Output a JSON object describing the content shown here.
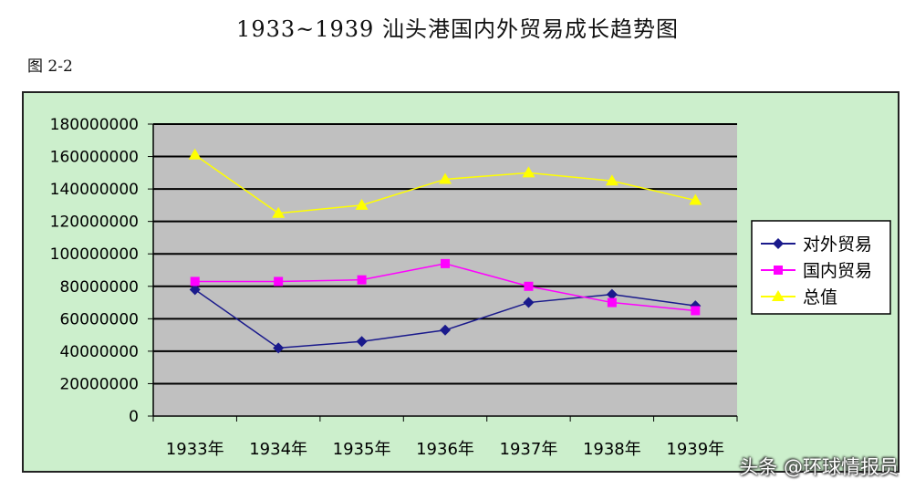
{
  "title": "1933~1939 汕头港国内外贸易成长趋势图",
  "figure_label": "图 2-2",
  "watermark": "头条 @环球情报员",
  "chart_data": {
    "type": "line",
    "title": "1933~1939 汕头港国内外贸易成长趋势图",
    "categories": [
      "1933年",
      "1934年",
      "1935年",
      "1936年",
      "1937年",
      "1938年",
      "1939年"
    ],
    "ylim": [
      0,
      180000000
    ],
    "yticks": [
      0,
      20000000,
      40000000,
      60000000,
      80000000,
      100000000,
      120000000,
      140000000,
      160000000,
      180000000
    ],
    "grid": true,
    "legend_position": "right",
    "series": [
      {
        "name": "对外贸易",
        "color": "#1a1a8c",
        "marker": "diamond",
        "values": [
          78000000,
          42000000,
          46000000,
          53000000,
          70000000,
          75000000,
          68000000
        ]
      },
      {
        "name": "国内贸易",
        "color": "#ff00ff",
        "marker": "square",
        "values": [
          83000000,
          83000000,
          84000000,
          94000000,
          80000000,
          70000000,
          65000000
        ]
      },
      {
        "name": "总值",
        "color": "#ffff00",
        "marker": "triangle",
        "values": [
          161000000,
          125000000,
          130000000,
          146000000,
          150000000,
          145000000,
          133000000
        ]
      }
    ]
  }
}
